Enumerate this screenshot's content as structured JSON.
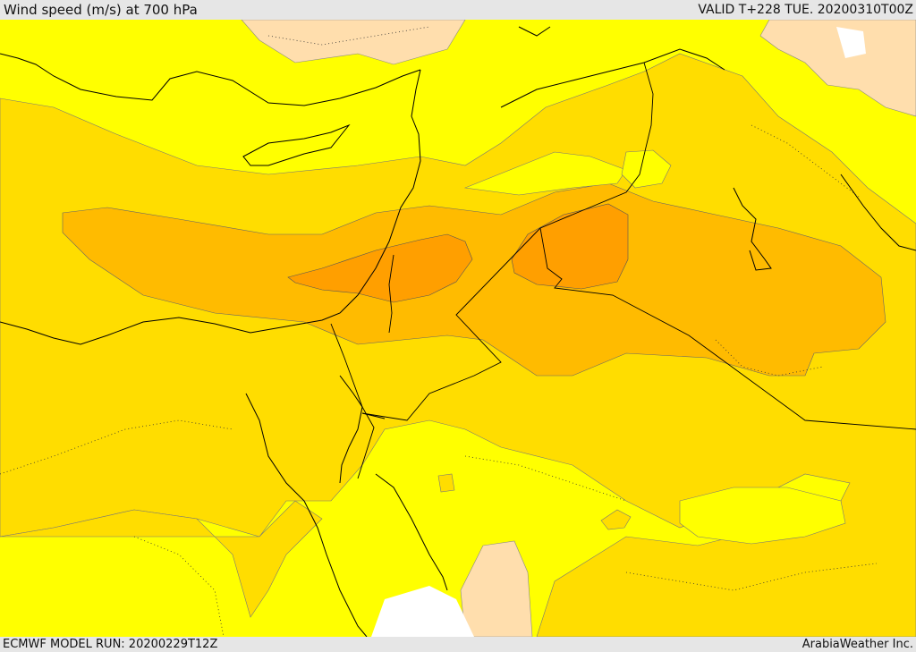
{
  "header": {
    "title": "Wind speed (m/s) at 700 hPa",
    "valid": "VALID T+228 TUE. 20200310T00Z"
  },
  "footer": {
    "model_run": "ECMWF MODEL RUN: 20200229T12Z",
    "credit": "ArabiaWeather Inc."
  },
  "colors": {
    "yellow": "#ffff00",
    "gold": "#ffdd00",
    "amber": "#ffbb00",
    "orange": "#ff9f00",
    "peach": "#ffdead",
    "white": "#ffffff"
  }
}
